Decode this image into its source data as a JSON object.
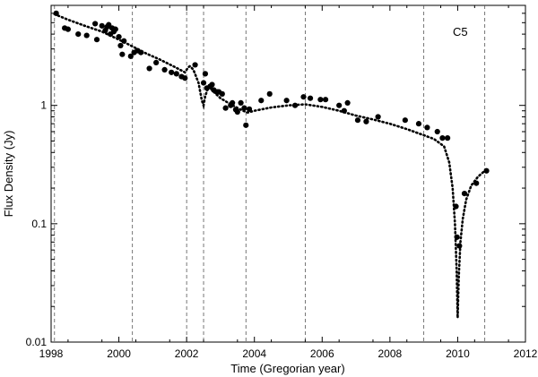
{
  "chart_data": {
    "type": "scatter",
    "title": "",
    "annotation": "C5",
    "xlabel": "Time (Gregorian year)",
    "ylabel": "Flux Density (Jy)",
    "xlim": [
      1998,
      2012
    ],
    "ylim": [
      0.01,
      7
    ],
    "yscale": "log",
    "grid": false,
    "xticks": [
      1998,
      2000,
      2002,
      2004,
      2006,
      2008,
      2010,
      2012
    ],
    "yticks": [
      {
        "value": 0.01,
        "label": "0.01"
      },
      {
        "value": 0.1,
        "label": "0.1"
      },
      {
        "value": 1,
        "label": "1"
      }
    ],
    "vertical_markers": [
      1998.1,
      2000.4,
      2002.0,
      2002.5,
      2003.75,
      2005.5,
      2009.0,
      2010.8
    ],
    "series": [
      {
        "kind": "points",
        "x": [
          1998.15,
          1998.4,
          1998.5,
          1998.8,
          1999.05,
          1999.3,
          1999.35,
          1999.5,
          1999.6,
          1999.65,
          1999.7,
          1999.75,
          1999.8,
          1999.85,
          1999.9,
          2000.0,
          2000.05,
          2000.1,
          2000.15,
          2000.35,
          2000.45,
          2000.55,
          2000.65,
          2000.9,
          2001.1,
          2001.35,
          2001.55,
          2001.7,
          2001.85,
          2001.95,
          2002.25,
          2002.5,
          2002.55,
          2002.6,
          2002.7,
          2002.75,
          2002.8,
          2002.9,
          2002.95,
          2003.05,
          2003.15,
          2003.3,
          2003.35,
          2003.45,
          2003.5,
          2003.6,
          2003.7,
          2003.75,
          2003.85,
          2004.2,
          2004.45,
          2004.95,
          2005.2,
          2005.45,
          2005.65,
          2005.95,
          2006.1,
          2006.5,
          2006.65,
          2006.75,
          2007.05,
          2007.3,
          2007.65,
          2008.45,
          2008.85,
          2009.1,
          2009.4,
          2009.55,
          2009.7,
          2009.95,
          2009.98,
          2010.05,
          2010.2,
          2010.55,
          2010.85
        ],
        "y": [
          6.0,
          4.5,
          4.4,
          4.0,
          3.9,
          4.9,
          3.6,
          4.7,
          4.3,
          4.6,
          4.8,
          4.0,
          4.5,
          4.2,
          4.4,
          3.8,
          3.2,
          2.7,
          3.5,
          2.6,
          2.8,
          2.9,
          2.8,
          2.05,
          2.3,
          2.0,
          1.9,
          1.85,
          1.75,
          1.7,
          2.2,
          1.55,
          1.85,
          1.4,
          1.45,
          1.5,
          1.35,
          1.3,
          1.3,
          1.25,
          0.95,
          1.0,
          1.05,
          0.92,
          0.88,
          1.05,
          0.95,
          0.68,
          0.93,
          1.1,
          1.25,
          1.1,
          1.0,
          1.18,
          1.15,
          1.12,
          1.12,
          1.0,
          0.9,
          1.05,
          0.75,
          0.73,
          0.8,
          0.75,
          0.7,
          0.65,
          0.6,
          0.53,
          0.53,
          0.14,
          0.077,
          0.065,
          0.18,
          0.22,
          0.28
        ]
      },
      {
        "kind": "model",
        "x": [
          1998.1,
          1998.5,
          1999.0,
          1999.5,
          2000.0,
          2000.4,
          2000.8,
          2001.2,
          2001.6,
          2001.95,
          2002.0,
          2002.05,
          2002.1,
          2002.2,
          2002.35,
          2002.45,
          2002.5,
          2002.55,
          2002.65,
          2002.8,
          2003.0,
          2003.3,
          2003.6,
          2003.75,
          2003.8,
          2004.0,
          2004.5,
          2005.0,
          2005.5,
          2006.0,
          2006.5,
          2007.0,
          2007.5,
          2008.0,
          2008.5,
          2009.0,
          2009.3,
          2009.6,
          2009.75,
          2009.85,
          2009.92,
          2009.97,
          2010.0,
          2010.03,
          2010.08,
          2010.15,
          2010.25,
          2010.4,
          2010.6,
          2010.8,
          2010.9
        ],
        "y": [
          5.9,
          5.3,
          4.7,
          4.2,
          3.6,
          3.15,
          2.75,
          2.45,
          2.15,
          1.9,
          2.0,
          2.1,
          2.15,
          2.0,
          1.55,
          1.1,
          1.0,
          1.2,
          1.45,
          1.3,
          1.15,
          1.02,
          0.92,
          0.88,
          0.87,
          0.9,
          0.96,
          1.0,
          1.02,
          0.97,
          0.9,
          0.82,
          0.76,
          0.7,
          0.63,
          0.56,
          0.52,
          0.45,
          0.33,
          0.2,
          0.1,
          0.04,
          0.016,
          0.035,
          0.07,
          0.11,
          0.16,
          0.21,
          0.25,
          0.28,
          0.29
        ]
      }
    ]
  }
}
